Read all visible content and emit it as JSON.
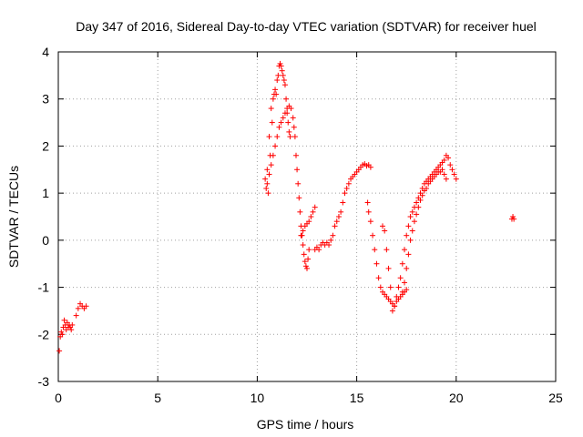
{
  "chart_data": {
    "type": "scatter",
    "title": "Day 347 of 2016, Sidereal Day-to-day VTEC variation (SDTVAR) for receiver huel",
    "xlabel": "GPS time / hours",
    "ylabel": "SDTVAR / TECUs",
    "xlim": [
      0,
      25
    ],
    "ylim": [
      -3,
      4
    ],
    "xticks": [
      "0",
      "5",
      "10",
      "15",
      "20",
      "25"
    ],
    "yticks": [
      "-3",
      "-2",
      "-1",
      "0",
      "1",
      "2",
      "3",
      "4"
    ],
    "grid": true,
    "marker": "+",
    "color": "#ff0000",
    "series": [
      {
        "x": [
          0.05,
          0.1,
          0.15,
          0.2,
          0.25,
          0.3,
          0.35,
          0.4,
          0.45,
          0.5,
          0.55,
          0.6,
          0.65,
          0.7,
          0.9,
          1.0,
          1.1,
          1.2,
          1.3,
          1.4,
          10.4,
          10.45,
          10.5,
          10.55,
          10.6,
          10.65,
          10.7,
          10.75,
          10.8,
          10.85,
          10.9,
          10.95,
          11.0,
          11.05,
          11.1,
          11.15,
          11.2,
          11.25,
          11.3,
          11.35,
          11.4,
          11.45,
          11.5,
          11.55,
          11.6,
          11.65,
          10.5,
          10.6,
          10.7,
          10.8,
          10.9,
          11.0,
          11.1,
          11.2,
          11.3,
          11.4,
          11.5,
          11.6,
          11.7,
          11.8,
          11.85,
          11.9,
          11.95,
          12.0,
          12.05,
          12.1,
          12.15,
          12.2,
          12.25,
          12.3,
          12.35,
          12.4,
          12.45,
          12.5,
          12.55,
          12.6,
          12.2,
          12.3,
          12.4,
          12.5,
          12.6,
          12.7,
          12.8,
          12.9,
          12.9,
          13.0,
          13.1,
          13.2,
          13.3,
          13.4,
          13.5,
          13.6,
          13.7,
          13.8,
          13.9,
          14.0,
          14.1,
          14.2,
          14.3,
          14.4,
          14.5,
          14.6,
          14.7,
          14.8,
          14.9,
          15.0,
          15.1,
          15.2,
          15.3,
          15.4,
          15.5,
          15.6,
          15.7,
          15.55,
          15.6,
          15.7,
          15.8,
          15.9,
          16.0,
          16.1,
          16.2,
          16.3,
          16.4,
          16.5,
          16.6,
          16.7,
          16.8,
          16.9,
          17.0,
          17.1,
          17.2,
          17.3,
          17.4,
          17.5,
          16.3,
          16.4,
          16.5,
          16.6,
          16.7,
          16.8,
          16.9,
          17.0,
          17.1,
          17.2,
          17.3,
          17.4,
          17.5,
          17.6,
          17.7,
          17.8,
          17.9,
          18.0,
          18.1,
          18.2,
          18.3,
          18.4,
          18.5,
          18.6,
          18.7,
          18.8,
          18.9,
          19.0,
          19.1,
          19.2,
          19.3,
          19.4,
          19.5,
          19.6,
          19.7,
          19.8,
          19.9,
          20.0,
          17.3,
          17.4,
          17.5,
          17.6,
          17.7,
          17.8,
          17.9,
          18.0,
          18.1,
          18.2,
          18.3,
          18.4,
          18.5,
          18.6,
          18.7,
          18.8,
          18.9,
          19.0,
          19.1,
          19.2,
          19.3,
          19.4,
          19.5,
          22.8,
          22.85,
          22.9
        ],
        "y": [
          -2.35,
          -2.05,
          -1.95,
          -2.0,
          -1.85,
          -1.7,
          -1.8,
          -1.9,
          -1.75,
          -1.85,
          -1.8,
          -1.85,
          -1.9,
          -1.8,
          -1.6,
          -1.45,
          -1.35,
          -1.4,
          -1.45,
          -1.4,
          1.3,
          1.1,
          1.5,
          1.0,
          2.2,
          1.8,
          2.8,
          2.5,
          3.0,
          3.1,
          3.2,
          3.1,
          3.4,
          3.5,
          3.7,
          3.75,
          3.7,
          3.6,
          3.5,
          3.4,
          3.3,
          3.0,
          2.7,
          2.5,
          2.3,
          2.2,
          1.2,
          1.4,
          1.6,
          1.8,
          2.0,
          2.2,
          2.4,
          2.5,
          2.6,
          2.7,
          2.8,
          2.85,
          2.8,
          2.6,
          2.4,
          2.2,
          1.8,
          1.5,
          1.2,
          0.9,
          0.6,
          0.3,
          0.1,
          -0.1,
          -0.3,
          -0.45,
          -0.55,
          -0.6,
          -0.4,
          -0.2,
          0.1,
          0.2,
          0.3,
          0.35,
          0.4,
          0.5,
          0.6,
          0.7,
          -0.2,
          -0.15,
          -0.2,
          -0.1,
          -0.05,
          -0.1,
          -0.05,
          -0.1,
          0.0,
          0.1,
          0.3,
          0.4,
          0.5,
          0.6,
          0.8,
          1.0,
          1.1,
          1.2,
          1.3,
          1.35,
          1.4,
          1.45,
          1.5,
          1.55,
          1.6,
          1.62,
          1.58,
          1.6,
          1.55,
          0.8,
          0.6,
          0.4,
          0.1,
          -0.2,
          -0.5,
          -0.8,
          -1.0,
          -1.1,
          -1.15,
          -1.2,
          -1.25,
          -1.3,
          -1.35,
          -1.4,
          -1.3,
          -1.25,
          -1.2,
          -1.15,
          -1.1,
          -1.05,
          0.3,
          0.2,
          -0.2,
          -0.6,
          -1.0,
          -1.5,
          -1.4,
          -1.2,
          -1.0,
          -0.8,
          -0.5,
          -0.2,
          0.1,
          0.3,
          0.5,
          0.6,
          0.7,
          0.8,
          0.9,
          1.0,
          1.1,
          1.2,
          1.25,
          1.3,
          1.35,
          1.4,
          1.45,
          1.5,
          1.55,
          1.6,
          1.65,
          1.7,
          1.8,
          1.75,
          1.6,
          1.5,
          1.4,
          1.3,
          -1.1,
          -0.9,
          -0.6,
          -0.3,
          0.0,
          0.2,
          0.4,
          0.55,
          0.7,
          0.85,
          0.95,
          1.05,
          1.1,
          1.2,
          1.25,
          1.3,
          1.35,
          1.4,
          1.45,
          1.45,
          1.5,
          1.4,
          1.3,
          0.45,
          0.5,
          0.45
        ]
      }
    ]
  }
}
